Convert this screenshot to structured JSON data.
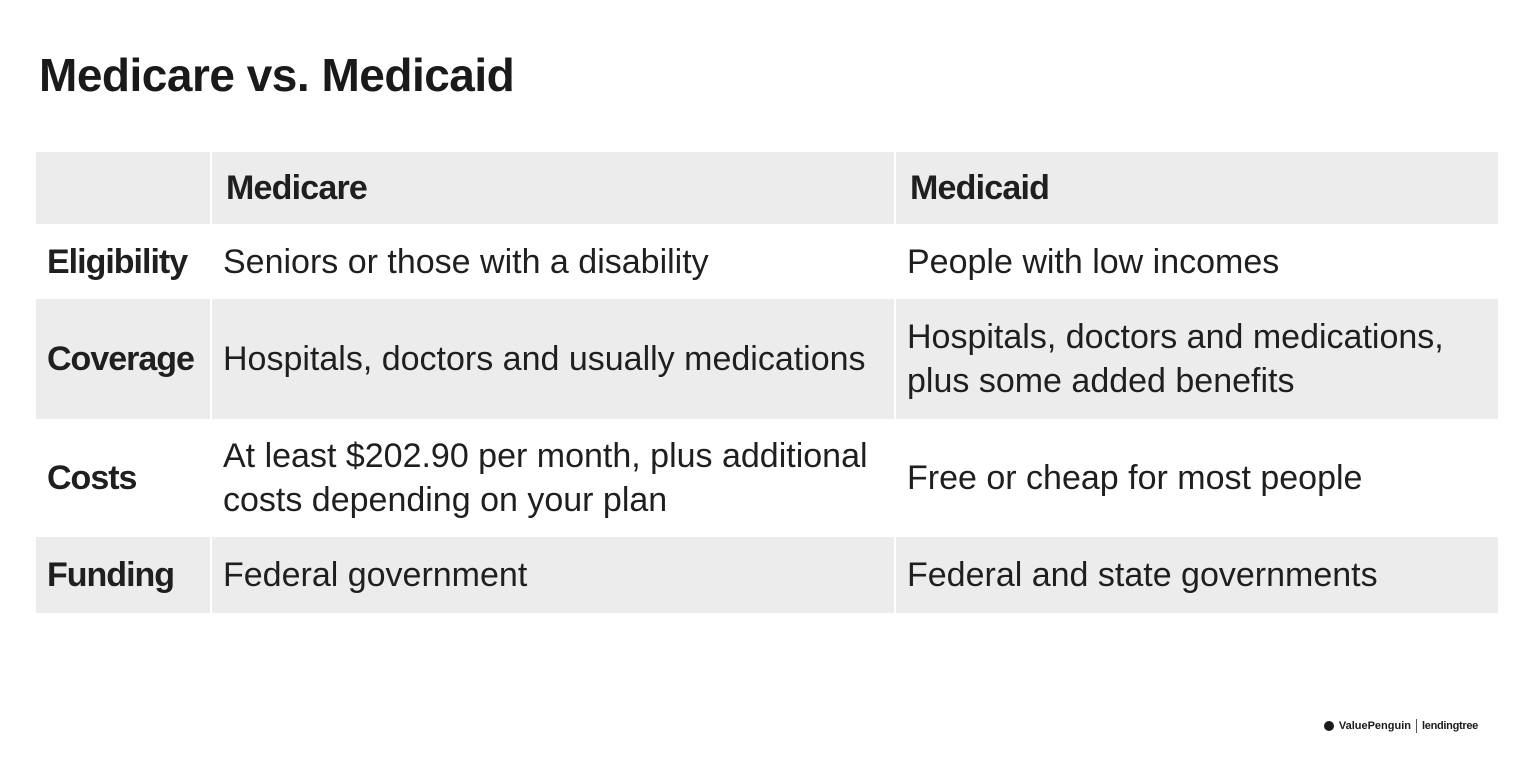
{
  "title": "Medicare vs. Medicaid",
  "table": {
    "headers": [
      "",
      "Medicare",
      "Medicaid"
    ],
    "rows": [
      {
        "label": "Eligibility",
        "medicare": "Seniors or those with a disability",
        "medicaid": "People with low incomes"
      },
      {
        "label": "Coverage",
        "medicare": "Hospitals, doctors and usually medications",
        "medicaid": "Hospitals, doctors and medications, plus some added benefits"
      },
      {
        "label": "Costs",
        "medicare": "At least $202.90 per month, plus additional costs depending on your plan",
        "medicaid": "Free or cheap for most people"
      },
      {
        "label": "Funding",
        "medicare": "Federal government",
        "medicaid": "Federal and state governments"
      }
    ]
  },
  "footer": {
    "brand": "ValuePenguin",
    "partner": "lendingtree",
    "brand_icon": "penguin-icon"
  },
  "colors": {
    "row_shade": "#ececec",
    "text": "#1f1f1f"
  }
}
